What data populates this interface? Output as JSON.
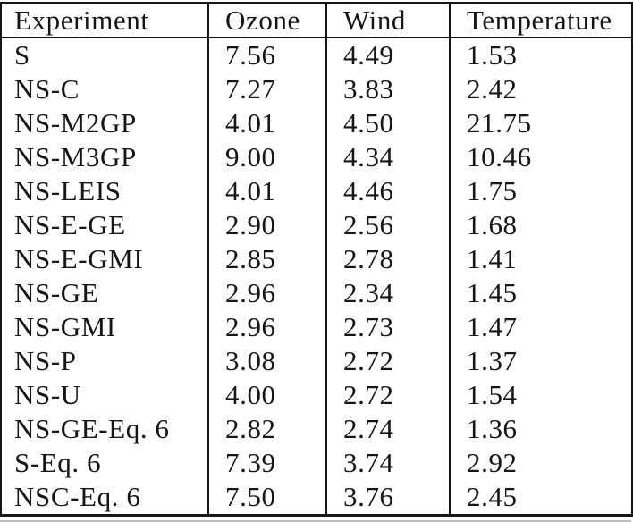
{
  "chart_data": {
    "type": "table",
    "title": "",
    "columns": [
      "Experiment",
      "Ozone",
      "Wind",
      "Temperature"
    ],
    "rows": [
      [
        "S",
        "7.56",
        "4.49",
        "1.53"
      ],
      [
        "NS-C",
        "7.27",
        "3.83",
        "2.42"
      ],
      [
        "NS-M2GP",
        "4.01",
        "4.50",
        "21.75"
      ],
      [
        "NS-M3GP",
        "9.00",
        "4.34",
        "10.46"
      ],
      [
        "NS-LEIS",
        "4.01",
        "4.46",
        "1.75"
      ],
      [
        "NS-E-GE",
        "2.90",
        "2.56",
        "1.68"
      ],
      [
        "NS-E-GMI",
        "2.85",
        "2.78",
        "1.41"
      ],
      [
        "NS-GE",
        "2.96",
        "2.34",
        "1.45"
      ],
      [
        "NS-GMI",
        "2.96",
        "2.73",
        "1.47"
      ],
      [
        "NS-P",
        "3.08",
        "2.72",
        "1.37"
      ],
      [
        "NS-U",
        "4.00",
        "2.72",
        "1.54"
      ],
      [
        "NS-GE-Eq. 6",
        "2.82",
        "2.74",
        "1.36"
      ],
      [
        "S-Eq. 6",
        "7.39",
        "3.74",
        "2.92"
      ],
      [
        "NSC-Eq. 6",
        "7.50",
        "3.76",
        "2.45"
      ]
    ],
    "layout": {
      "grid": "outer border, header rule, column separators; no row separators",
      "legend_position": "none"
    },
    "colors": {
      "text": "#161616",
      "border": "#161616",
      "background": "#ffffff"
    }
  }
}
